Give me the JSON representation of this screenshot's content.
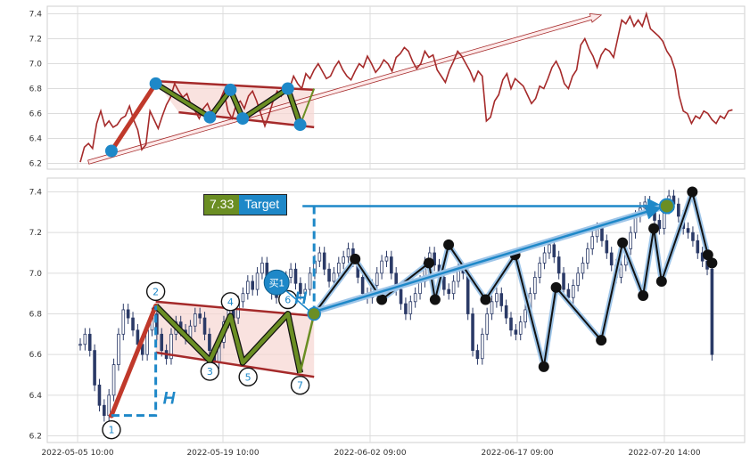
{
  "chart_data": {
    "type": "line",
    "x_tick_labels": [
      "2022-05-05 10:00",
      "2022-05-19 10:00",
      "2022-06-02 09:00",
      "2022-06-17 09:00",
      "2022-07-20 14:00"
    ],
    "panels": [
      {
        "name": "overview",
        "ylim": [
          6.15,
          7.45
        ],
        "y_ticks": [
          "6.2",
          "6.4",
          "6.6",
          "6.8",
          "7.0",
          "7.2",
          "7.4"
        ],
        "grid": true,
        "line_color": "#a52a2a",
        "series_values": [
          6.21,
          6.33,
          6.36,
          6.32,
          6.52,
          6.62,
          6.5,
          6.54,
          6.49,
          6.51,
          6.56,
          6.58,
          6.66,
          6.55,
          6.47,
          6.31,
          6.35,
          6.62,
          6.55,
          6.48,
          6.58,
          6.67,
          6.73,
          6.84,
          6.78,
          6.73,
          6.76,
          6.67,
          6.62,
          6.56,
          6.64,
          6.68,
          6.6,
          6.6,
          6.7,
          6.78,
          6.62,
          6.56,
          6.67,
          6.7,
          6.64,
          6.74,
          6.78,
          6.7,
          6.6,
          6.5,
          6.59,
          6.7,
          6.78,
          6.74,
          6.82,
          6.8,
          6.9,
          6.84,
          6.8,
          6.92,
          6.88,
          6.95,
          7.0,
          6.94,
          6.88,
          6.9,
          6.97,
          7.02,
          6.95,
          6.9,
          6.87,
          6.94,
          7.0,
          6.97,
          7.06,
          7.0,
          6.93,
          6.97,
          7.03,
          7.0,
          6.94,
          7.05,
          7.08,
          7.13,
          7.1,
          7.02,
          6.96,
          7.0,
          7.1,
          7.05,
          7.07,
          6.95,
          6.9,
          6.85,
          6.95,
          7.02,
          7.1,
          7.06,
          7.0,
          6.94,
          6.86,
          6.94,
          6.9,
          6.54,
          6.57,
          6.7,
          6.75,
          6.87,
          6.92,
          6.8,
          6.88,
          6.85,
          6.82,
          6.75,
          6.68,
          6.72,
          6.82,
          6.8,
          6.88,
          6.97,
          7.02,
          6.95,
          6.84,
          6.8,
          6.9,
          6.95,
          7.15,
          7.2,
          7.12,
          7.06,
          6.97,
          7.07,
          7.12,
          7.1,
          7.05,
          7.2,
          7.35,
          7.32,
          7.38,
          7.3,
          7.35,
          7.3,
          7.4,
          7.28,
          7.25,
          7.22,
          7.18,
          7.1,
          7.05,
          6.95,
          6.74,
          6.62,
          6.6,
          6.52,
          6.58,
          6.56,
          6.62,
          6.6,
          6.55,
          6.52,
          6.58,
          6.56,
          6.62,
          6.63
        ],
        "pattern_points": [
          [
            7.6,
            6.3
          ],
          [
            18.4,
            6.84
          ],
          [
            31.6,
            6.57
          ],
          [
            36.6,
            6.79
          ],
          [
            39.6,
            6.56
          ],
          [
            50.6,
            6.8
          ],
          [
            53.6,
            6.51
          ]
        ],
        "channel_upper": [
          [
            18.4,
            6.86
          ],
          [
            57,
            6.79
          ]
        ],
        "channel_lower": [
          [
            24,
            6.61
          ],
          [
            57,
            6.49
          ]
        ],
        "trend_arrow": [
          [
            2,
            6.21
          ],
          [
            127,
            7.39
          ]
        ]
      },
      {
        "name": "candles",
        "ylim": [
          6.17,
          7.47
        ],
        "y_ticks": [
          "6.2",
          "6.4",
          "6.6",
          "6.8",
          "7.0",
          "7.2",
          "7.4"
        ],
        "grid": true,
        "candle_closes": [
          6.65,
          6.7,
          6.62,
          6.45,
          6.35,
          6.3,
          6.4,
          6.55,
          6.7,
          6.82,
          6.78,
          6.72,
          6.65,
          6.6,
          6.72,
          6.8,
          6.7,
          6.62,
          6.58,
          6.7,
          6.76,
          6.72,
          6.68,
          6.74,
          6.8,
          6.78,
          6.7,
          6.62,
          6.56,
          6.66,
          6.76,
          6.82,
          6.78,
          6.86,
          6.9,
          6.96,
          6.92,
          7.0,
          7.05,
          6.98,
          6.9,
          6.88,
          6.94,
          6.98,
          7.02,
          6.95,
          6.9,
          6.92,
          7.0,
          7.06,
          7.1,
          7.02,
          6.96,
          7.0,
          7.05,
          7.08,
          7.12,
          7.06,
          6.98,
          6.9,
          6.88,
          6.94,
          7.0,
          7.06,
          7.08,
          7.0,
          6.92,
          6.85,
          6.8,
          6.86,
          6.9,
          6.96,
          7.05,
          7.1,
          7.04,
          6.98,
          6.92,
          6.9,
          6.96,
          7.02,
          7.0,
          6.8,
          6.62,
          6.58,
          6.7,
          6.8,
          6.86,
          6.9,
          6.84,
          6.78,
          6.72,
          6.7,
          6.76,
          6.82,
          6.9,
          6.98,
          7.05,
          7.1,
          7.14,
          7.08,
          7.0,
          6.92,
          6.88,
          6.94,
          7.0,
          7.05,
          7.12,
          7.18,
          7.22,
          7.16,
          7.1,
          7.04,
          6.98,
          7.04,
          7.12,
          7.2,
          7.28,
          7.32,
          7.35,
          7.3,
          7.26,
          7.22,
          7.32,
          7.38,
          7.34,
          7.28,
          7.22,
          7.2,
          7.16,
          7.1,
          7.06,
          7.02,
          6.6
        ],
        "pattern_points": [
          [
            7.6,
            6.3
          ],
          [
            18.4,
            6.84
          ],
          [
            31.6,
            6.57
          ],
          [
            36.6,
            6.79
          ],
          [
            39.6,
            6.56
          ],
          [
            50.6,
            6.8
          ],
          [
            53.6,
            6.51
          ]
        ],
        "pattern_labels": [
          "1",
          "2",
          "3",
          "4",
          "5",
          "6",
          "7"
        ],
        "zigzag_points": [
          [
            57,
            6.8
          ],
          [
            67,
            7.07
          ],
          [
            73.5,
            6.87
          ],
          [
            85,
            7.05
          ],
          [
            86.5,
            6.87
          ],
          [
            89.8,
            7.14
          ],
          [
            98.8,
            6.87
          ],
          [
            106,
            7.09
          ],
          [
            113,
            6.54
          ],
          [
            116,
            6.93
          ],
          [
            127,
            6.67
          ],
          [
            132.2,
            7.15
          ],
          [
            137.2,
            6.89
          ],
          [
            139.8,
            7.22
          ],
          [
            141.7,
            6.96
          ],
          [
            149.2,
            7.4
          ],
          [
            153,
            7.09
          ],
          [
            154,
            7.05
          ]
        ],
        "channel_upper": [
          [
            18.4,
            6.86
          ],
          [
            57,
            6.79
          ]
        ],
        "channel_lower": [
          [
            18.4,
            6.61
          ],
          [
            57,
            6.49
          ]
        ],
        "height_measure_left": {
          "x": [
            7.6,
            18.4
          ],
          "y": [
            6.3,
            6.84
          ]
        },
        "height_measure_right": {
          "x": 57,
          "y": [
            6.8,
            7.33
          ]
        },
        "target_line": {
          "x": [
            57,
            143
          ],
          "y": 7.33
        },
        "target_arrow": [
          [
            57,
            6.81
          ],
          [
            143,
            7.33
          ]
        ],
        "buy_point": [
          57,
          6.8
        ],
        "target_point": [
          143,
          7.33
        ]
      }
    ],
    "annotations": {
      "height_label": "H",
      "buy_label": "买1",
      "target_value": "7.33",
      "target_label": "Target"
    }
  }
}
